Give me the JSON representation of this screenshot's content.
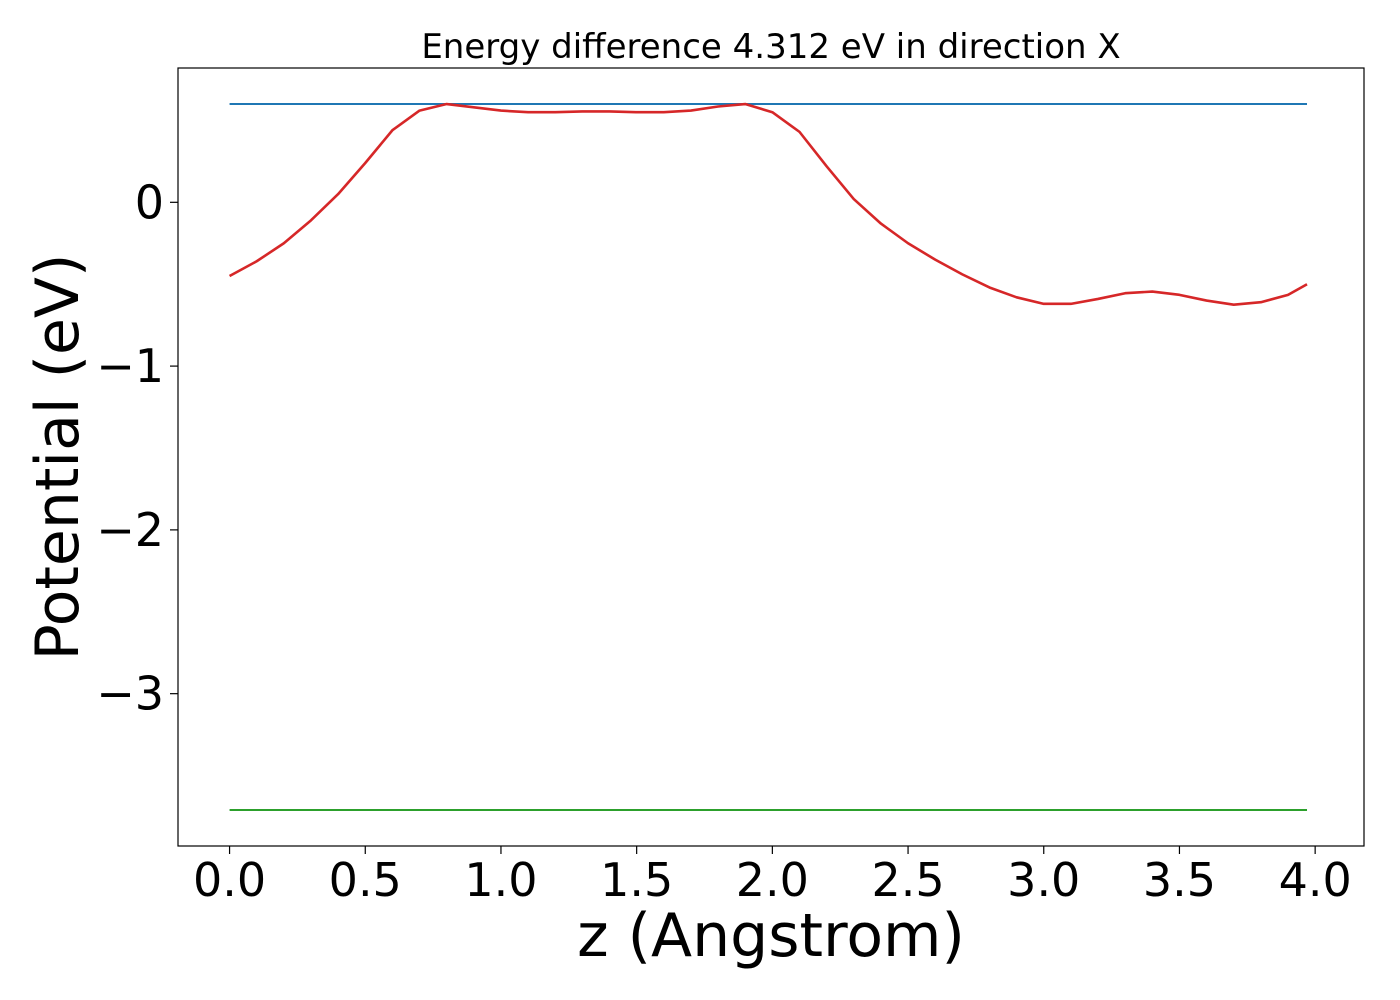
{
  "chart_data": {
    "type": "line",
    "title": "Energy difference 4.312 eV in direction X",
    "xlabel": "z (Angstrom)",
    "ylabel": "Potential (eV)",
    "xlim": [
      -0.19,
      4.18
    ],
    "ylim": [
      -3.93,
      0.82
    ],
    "xticks": [
      0.0,
      0.5,
      1.0,
      1.5,
      2.0,
      2.5,
      3.0,
      3.5,
      4.0
    ],
    "xtick_labels": [
      "0.0",
      "0.5",
      "1.0",
      "1.5",
      "2.0",
      "2.5",
      "3.0",
      "3.5",
      "4.0"
    ],
    "yticks": [
      0,
      -1,
      -2,
      -3
    ],
    "ytick_labels": [
      "0",
      "−1",
      "−2",
      "−3"
    ],
    "grid": false,
    "series": [
      {
        "color": "#1f77b4",
        "kind": "hline",
        "x": [
          0.0,
          3.97
        ],
        "y": [
          0.6,
          0.6
        ]
      },
      {
        "color": "#2ca02c",
        "kind": "hline",
        "x": [
          0.0,
          3.97
        ],
        "y": [
          -3.71,
          -3.71
        ]
      },
      {
        "color": "#d62728",
        "kind": "curve",
        "x": [
          0.0,
          0.1,
          0.2,
          0.3,
          0.4,
          0.5,
          0.6,
          0.7,
          0.8,
          0.9,
          1.0,
          1.1,
          1.2,
          1.3,
          1.4,
          1.5,
          1.6,
          1.7,
          1.8,
          1.9,
          2.0,
          2.1,
          2.2,
          2.3,
          2.4,
          2.5,
          2.6,
          2.7,
          2.8,
          2.9,
          3.0,
          3.1,
          3.2,
          3.3,
          3.4,
          3.5,
          3.6,
          3.7,
          3.8,
          3.9,
          3.97
        ],
        "y": [
          -0.45,
          -0.36,
          -0.25,
          -0.11,
          0.05,
          0.24,
          0.44,
          0.56,
          0.6,
          0.58,
          0.56,
          0.55,
          0.55,
          0.555,
          0.555,
          0.55,
          0.55,
          0.56,
          0.585,
          0.6,
          0.55,
          0.43,
          0.22,
          0.02,
          -0.13,
          -0.25,
          -0.35,
          -0.44,
          -0.52,
          -0.58,
          -0.62,
          -0.62,
          -0.59,
          -0.555,
          -0.545,
          -0.565,
          -0.6,
          -0.625,
          -0.61,
          -0.565,
          -0.5
        ]
      }
    ]
  }
}
